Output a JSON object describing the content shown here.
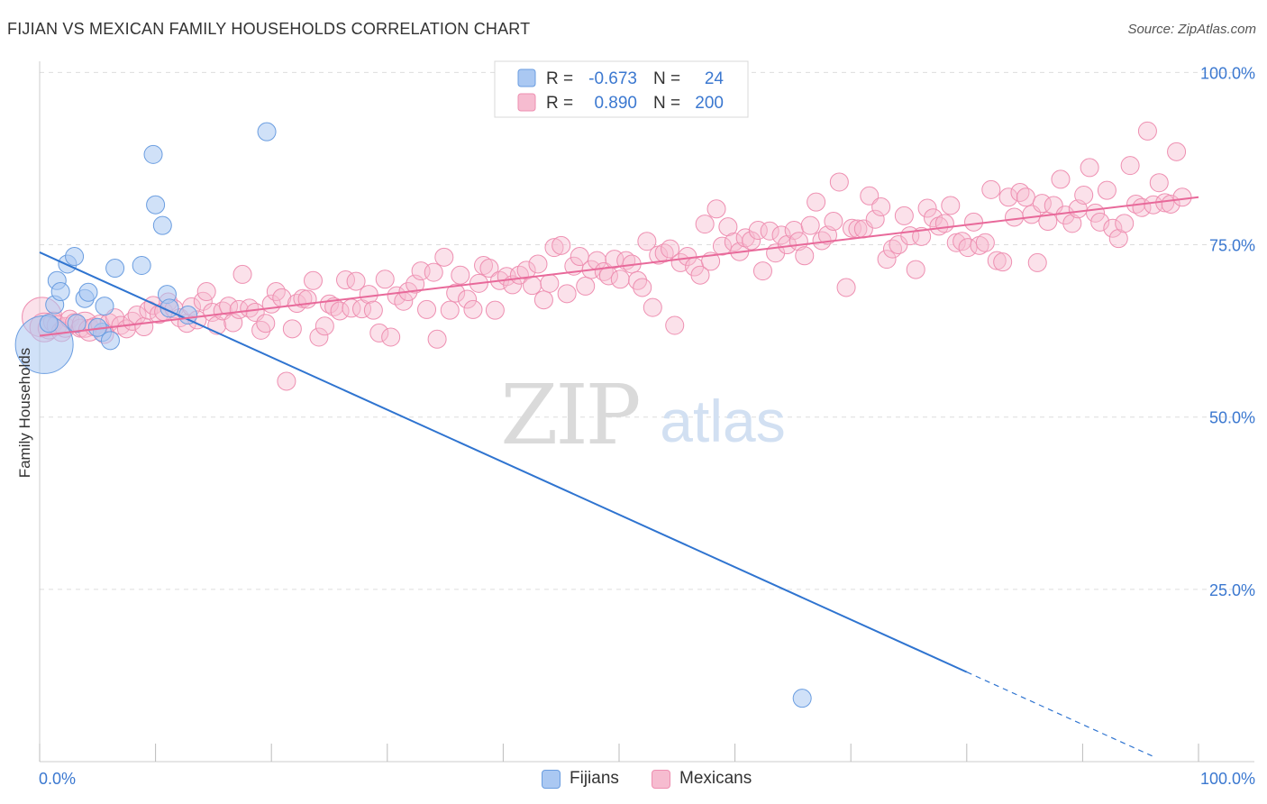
{
  "title": "FIJIAN VS MEXICAN FAMILY HOUSEHOLDS CORRELATION CHART",
  "source": "Source: ZipAtlas.com",
  "watermark": {
    "zip": "ZIP",
    "atlas": "atlas"
  },
  "colors": {
    "fijian_fill": "#aac8f2",
    "fijian_stroke": "#6a9de0",
    "fijian_line": "#2f74d0",
    "mexican_fill": "#f6bcd0",
    "mexican_stroke": "#ee8fb1",
    "mexican_line": "#e8699a",
    "axis_text": "#3b78d0",
    "grid": "#dddddd"
  },
  "legend_top": {
    "rows": [
      {
        "series": "fijian",
        "r_label": "R = ",
        "r_value": "-0.673",
        "n_label": "N = ",
        "n_value": "24"
      },
      {
        "series": "mexican",
        "r_label": "R = ",
        "r_value": "0.890",
        "n_label": "N = ",
        "n_value": "200"
      }
    ]
  },
  "legend_bottom": [
    {
      "series": "fijian",
      "label": "Fijians"
    },
    {
      "series": "mexican",
      "label": "Mexicans"
    }
  ],
  "chart_data": {
    "type": "scatter",
    "title": "FIJIAN VS MEXICAN FAMILY HOUSEHOLDS CORRELATION CHART",
    "xlabel": "",
    "ylabel": "Family Households",
    "xlim": [
      0,
      100
    ],
    "ylim": [
      0,
      102
    ],
    "x_tick_labels": [
      "0.0%",
      "100.0%"
    ],
    "y_tick_labels": [
      {
        "value": 25,
        "label": "25.0%"
      },
      {
        "value": 50,
        "label": "50.0%"
      },
      {
        "value": 75,
        "label": "75.0%"
      },
      {
        "value": 100,
        "label": "100.0%"
      }
    ],
    "grid": true,
    "series": [
      {
        "name": "Fijians",
        "R": -0.673,
        "N": 24,
        "trend": {
          "x0": 0,
          "y0": 73.9,
          "x1": 80,
          "y1": 13.0,
          "dash_to_x": 96
        },
        "points": [
          [
            0.4,
            60.5,
            32
          ],
          [
            0.8,
            63.6,
            10
          ],
          [
            1.3,
            66.3,
            10
          ],
          [
            1.5,
            69.8,
            10
          ],
          [
            1.8,
            68.2,
            10
          ],
          [
            2.4,
            72.2,
            10
          ],
          [
            3.0,
            73.3,
            10
          ],
          [
            3.2,
            63.6,
            10
          ],
          [
            3.9,
            67.2,
            10
          ],
          [
            4.2,
            68.1,
            10
          ],
          [
            5.4,
            62.3,
            10
          ],
          [
            5.6,
            66.1,
            10
          ],
          [
            6.1,
            61.1,
            10
          ],
          [
            6.5,
            71.6,
            10
          ],
          [
            8.8,
            72.0,
            10
          ],
          [
            9.8,
            88.1,
            10
          ],
          [
            10.0,
            80.8,
            10
          ],
          [
            10.6,
            77.8,
            10
          ],
          [
            11.0,
            67.8,
            10
          ],
          [
            11.2,
            65.8,
            10
          ],
          [
            12.8,
            64.8,
            10
          ],
          [
            19.6,
            91.4,
            10
          ],
          [
            65.8,
            9.2,
            10
          ],
          [
            5.0,
            63.0,
            10
          ]
        ]
      },
      {
        "name": "Mexicans",
        "R": 0.89,
        "N": 200,
        "trend": {
          "x0": 0,
          "y0": 61.8,
          "x1": 100,
          "y1": 81.9
        },
        "points": [
          [
            0.2,
            64.5,
            22
          ],
          [
            0.4,
            63.0,
            16
          ],
          [
            0.8,
            62.9,
            12
          ],
          [
            1.2,
            63.8,
            11
          ],
          [
            1.5,
            63.3,
            11
          ],
          [
            1.9,
            62.4,
            11
          ],
          [
            2.2,
            63.0,
            11
          ],
          [
            2.6,
            64.2,
            10
          ],
          [
            3.0,
            63.7,
            10
          ],
          [
            3.5,
            62.9,
            10
          ],
          [
            3.9,
            63.4,
            14
          ],
          [
            4.3,
            62.6,
            12
          ],
          [
            4.7,
            63.1,
            10
          ],
          [
            5.2,
            63.5,
            10
          ],
          [
            5.6,
            62.0,
            10
          ],
          [
            6.0,
            63.7,
            10
          ],
          [
            6.5,
            64.4,
            10
          ],
          [
            7.0,
            63.3,
            10
          ],
          [
            7.5,
            62.8,
            10
          ],
          [
            8.0,
            63.9,
            10
          ],
          [
            8.4,
            64.8,
            10
          ],
          [
            9.0,
            63.1,
            10
          ],
          [
            9.4,
            65.5,
            10
          ],
          [
            9.8,
            66.2,
            10
          ],
          [
            10.3,
            64.9,
            10
          ],
          [
            10.7,
            65.3,
            10
          ],
          [
            11.1,
            66.7,
            10
          ],
          [
            11.6,
            65.7,
            10
          ],
          [
            12.1,
            64.4,
            10
          ],
          [
            12.7,
            63.6,
            10
          ],
          [
            13.1,
            66.0,
            10
          ],
          [
            13.6,
            64.1,
            10
          ],
          [
            14.1,
            66.8,
            10
          ],
          [
            14.4,
            68.2,
            10
          ],
          [
            14.9,
            65.2,
            10
          ],
          [
            15.3,
            63.3,
            10
          ],
          [
            15.8,
            65.4,
            10
          ],
          [
            16.3,
            66.1,
            10
          ],
          [
            16.7,
            63.7,
            10
          ],
          [
            17.2,
            65.6,
            10
          ],
          [
            17.5,
            70.7,
            10
          ],
          [
            18.1,
            65.8,
            10
          ],
          [
            18.6,
            65.2,
            10
          ],
          [
            19.1,
            62.6,
            10
          ],
          [
            19.5,
            63.6,
            10
          ],
          [
            20.0,
            66.4,
            10
          ],
          [
            20.4,
            68.2,
            10
          ],
          [
            20.9,
            67.3,
            10
          ],
          [
            21.3,
            55.2,
            10
          ],
          [
            21.8,
            62.8,
            10
          ],
          [
            22.2,
            66.5,
            10
          ],
          [
            22.7,
            67.2,
            10
          ],
          [
            23.1,
            67.1,
            10
          ],
          [
            23.6,
            69.8,
            10
          ],
          [
            24.1,
            61.6,
            10
          ],
          [
            24.6,
            63.2,
            10
          ],
          [
            25.0,
            66.4,
            10
          ],
          [
            25.4,
            66.0,
            10
          ],
          [
            25.9,
            65.4,
            10
          ],
          [
            26.4,
            69.9,
            10
          ],
          [
            26.9,
            65.8,
            10
          ],
          [
            27.3,
            69.7,
            10
          ],
          [
            27.8,
            65.7,
            10
          ],
          [
            28.4,
            67.8,
            10
          ],
          [
            28.8,
            65.5,
            10
          ],
          [
            29.3,
            62.2,
            10
          ],
          [
            29.8,
            70.0,
            10
          ],
          [
            30.3,
            61.6,
            10
          ],
          [
            30.8,
            67.6,
            10
          ],
          [
            31.4,
            66.8,
            10
          ],
          [
            31.8,
            68.2,
            10
          ],
          [
            32.4,
            69.3,
            10
          ],
          [
            32.9,
            71.2,
            10
          ],
          [
            33.4,
            65.6,
            10
          ],
          [
            34.0,
            71.0,
            10
          ],
          [
            34.3,
            61.3,
            10
          ],
          [
            34.9,
            73.2,
            10
          ],
          [
            35.4,
            65.5,
            10
          ],
          [
            35.9,
            68.0,
            10
          ],
          [
            36.3,
            70.6,
            10
          ],
          [
            36.9,
            67.1,
            10
          ],
          [
            37.4,
            65.6,
            10
          ],
          [
            37.9,
            69.4,
            10
          ],
          [
            38.3,
            72.0,
            10
          ],
          [
            38.8,
            71.6,
            10
          ],
          [
            39.3,
            65.5,
            10
          ],
          [
            39.7,
            69.8,
            10
          ],
          [
            40.3,
            70.4,
            10
          ],
          [
            40.8,
            69.2,
            10
          ],
          [
            41.4,
            70.6,
            10
          ],
          [
            42.0,
            71.3,
            10
          ],
          [
            42.5,
            69.1,
            10
          ],
          [
            43.0,
            72.2,
            10
          ],
          [
            43.5,
            67.0,
            10
          ],
          [
            44.0,
            69.4,
            10
          ],
          [
            44.4,
            74.6,
            10
          ],
          [
            45.0,
            74.9,
            10
          ],
          [
            45.5,
            67.9,
            10
          ],
          [
            46.1,
            71.9,
            10
          ],
          [
            46.6,
            73.3,
            10
          ],
          [
            47.1,
            69.0,
            10
          ],
          [
            47.6,
            71.4,
            10
          ],
          [
            48.1,
            72.7,
            10
          ],
          [
            48.7,
            71.1,
            10
          ],
          [
            49.1,
            70.5,
            10
          ],
          [
            49.6,
            72.9,
            10
          ],
          [
            50.1,
            70.0,
            10
          ],
          [
            50.6,
            72.7,
            10
          ],
          [
            51.1,
            72.2,
            10
          ],
          [
            51.6,
            69.8,
            10
          ],
          [
            52.0,
            68.8,
            10
          ],
          [
            52.4,
            75.5,
            10
          ],
          [
            52.9,
            65.9,
            10
          ],
          [
            53.4,
            73.5,
            10
          ],
          [
            53.9,
            73.8,
            10
          ],
          [
            54.4,
            74.4,
            10
          ],
          [
            54.8,
            63.3,
            10
          ],
          [
            55.3,
            72.4,
            10
          ],
          [
            55.9,
            73.3,
            10
          ],
          [
            56.5,
            71.8,
            10
          ],
          [
            57.0,
            70.6,
            10
          ],
          [
            57.4,
            78.0,
            10
          ],
          [
            57.9,
            72.6,
            10
          ],
          [
            58.4,
            80.2,
            10
          ],
          [
            58.9,
            74.8,
            10
          ],
          [
            59.4,
            77.6,
            10
          ],
          [
            59.9,
            75.4,
            10
          ],
          [
            60.4,
            74.0,
            10
          ],
          [
            60.9,
            76.0,
            10
          ],
          [
            61.4,
            75.6,
            10
          ],
          [
            62.0,
            77.1,
            10
          ],
          [
            62.4,
            71.2,
            10
          ],
          [
            63.0,
            77.0,
            10
          ],
          [
            63.5,
            73.8,
            10
          ],
          [
            64.0,
            76.4,
            10
          ],
          [
            64.5,
            75.0,
            10
          ],
          [
            65.1,
            77.1,
            10
          ],
          [
            65.5,
            75.5,
            10
          ],
          [
            66.0,
            73.4,
            10
          ],
          [
            66.5,
            77.8,
            10
          ],
          [
            67.0,
            81.2,
            10
          ],
          [
            67.5,
            75.6,
            10
          ],
          [
            68.0,
            76.4,
            10
          ],
          [
            68.5,
            78.4,
            10
          ],
          [
            69.0,
            84.1,
            10
          ],
          [
            69.6,
            68.8,
            10
          ],
          [
            70.1,
            77.4,
            10
          ],
          [
            70.6,
            77.3,
            10
          ],
          [
            71.1,
            77.3,
            10
          ],
          [
            71.6,
            82.1,
            10
          ],
          [
            72.1,
            78.7,
            10
          ],
          [
            72.6,
            80.5,
            10
          ],
          [
            73.1,
            72.9,
            10
          ],
          [
            73.6,
            74.4,
            10
          ],
          [
            74.1,
            75.0,
            10
          ],
          [
            74.6,
            79.2,
            10
          ],
          [
            75.1,
            76.3,
            10
          ],
          [
            75.6,
            71.4,
            10
          ],
          [
            76.1,
            76.2,
            10
          ],
          [
            76.6,
            80.3,
            10
          ],
          [
            77.1,
            78.9,
            10
          ],
          [
            77.6,
            77.7,
            10
          ],
          [
            78.1,
            78.1,
            10
          ],
          [
            78.6,
            80.7,
            10
          ],
          [
            79.1,
            75.3,
            10
          ],
          [
            79.6,
            75.5,
            10
          ],
          [
            80.1,
            74.6,
            10
          ],
          [
            80.6,
            78.3,
            10
          ],
          [
            81.1,
            74.9,
            10
          ],
          [
            81.6,
            75.3,
            10
          ],
          [
            82.1,
            83.0,
            10
          ],
          [
            82.6,
            72.7,
            10
          ],
          [
            83.1,
            72.5,
            10
          ],
          [
            83.6,
            81.9,
            10
          ],
          [
            84.1,
            79.0,
            10
          ],
          [
            84.6,
            82.6,
            10
          ],
          [
            85.1,
            81.9,
            10
          ],
          [
            85.6,
            79.4,
            10
          ],
          [
            86.1,
            72.4,
            10
          ],
          [
            86.5,
            81.0,
            10
          ],
          [
            87.0,
            78.4,
            10
          ],
          [
            87.5,
            80.7,
            10
          ],
          [
            88.1,
            84.5,
            10
          ],
          [
            88.5,
            79.3,
            10
          ],
          [
            89.1,
            78.1,
            10
          ],
          [
            89.6,
            80.2,
            10
          ],
          [
            90.1,
            82.2,
            10
          ],
          [
            90.6,
            86.2,
            10
          ],
          [
            91.1,
            79.6,
            10
          ],
          [
            91.5,
            78.3,
            10
          ],
          [
            92.1,
            82.9,
            10
          ],
          [
            92.6,
            77.4,
            10
          ],
          [
            93.1,
            75.9,
            10
          ],
          [
            93.6,
            78.1,
            10
          ],
          [
            94.1,
            86.5,
            10
          ],
          [
            94.6,
            80.9,
            10
          ],
          [
            95.1,
            80.4,
            10
          ],
          [
            95.6,
            91.5,
            10
          ],
          [
            96.1,
            80.8,
            10
          ],
          [
            96.6,
            84.0,
            10
          ],
          [
            97.1,
            81.1,
            10
          ],
          [
            97.6,
            80.9,
            10
          ],
          [
            98.1,
            88.5,
            10
          ],
          [
            98.6,
            81.9,
            10
          ]
        ]
      }
    ]
  }
}
